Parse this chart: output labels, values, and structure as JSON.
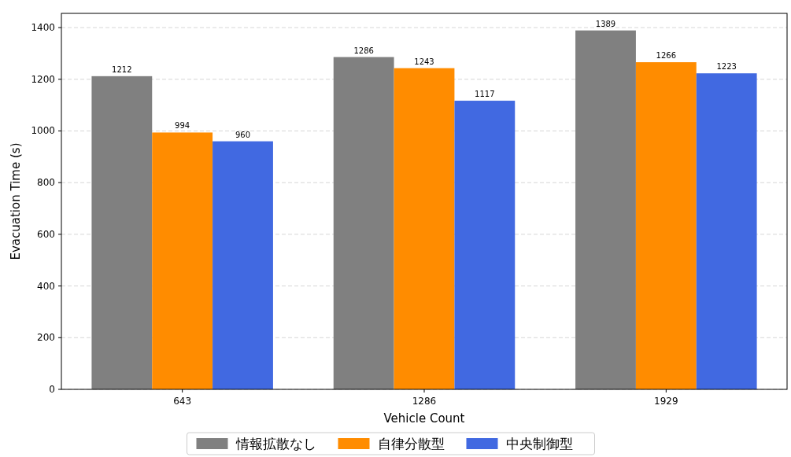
{
  "chart_data": {
    "type": "bar",
    "xlabel": "Vehicle Count",
    "ylabel": "Evacuation Time (s)",
    "categories": [
      "643",
      "1286",
      "1929"
    ],
    "series": [
      {
        "name": "情報拡散なし",
        "color": "#808080",
        "values": [
          1212,
          1286,
          1389
        ]
      },
      {
        "name": "自律分散型",
        "color": "#ff8c00",
        "values": [
          994,
          1243,
          1266
        ]
      },
      {
        "name": "中央制御型",
        "color": "#4169e1",
        "values": [
          960,
          1117,
          1223
        ]
      }
    ],
    "ylim": [
      0,
      1455
    ],
    "yticks": [
      0,
      200,
      400,
      600,
      800,
      1000,
      1200,
      1400
    ],
    "grid": "y",
    "legend": "bottom",
    "data_labels": true
  }
}
